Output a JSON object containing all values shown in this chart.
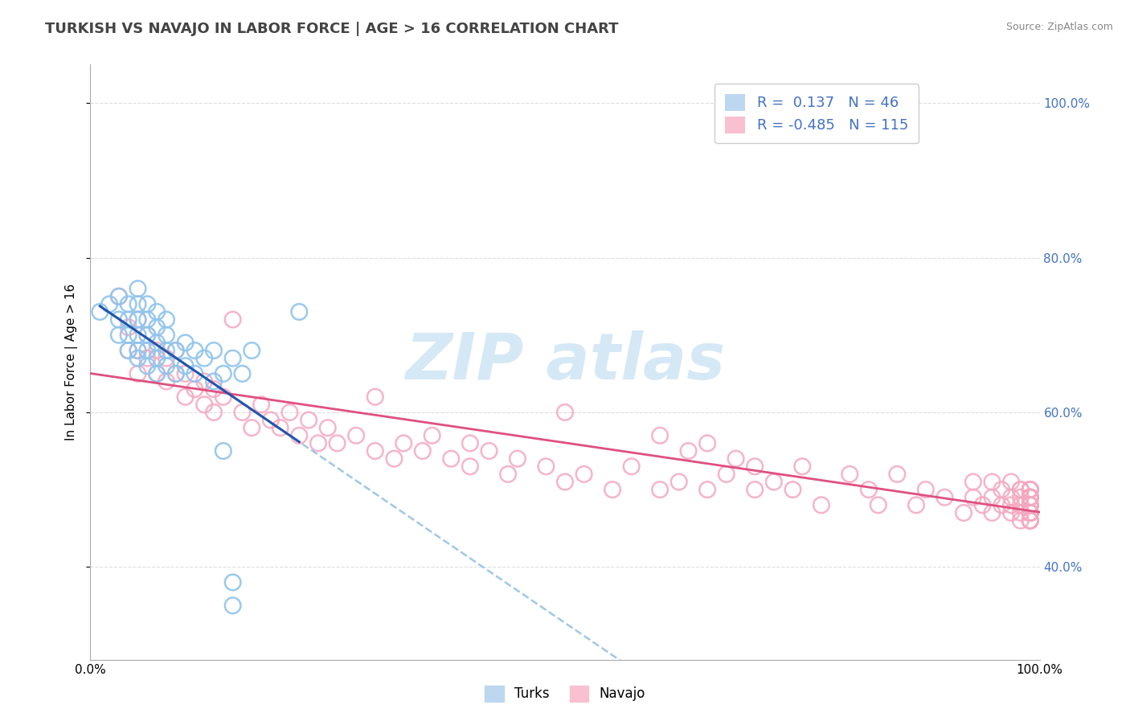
{
  "title": "TURKISH VS NAVAJO IN LABOR FORCE | AGE > 16 CORRELATION CHART",
  "source": "Source: ZipAtlas.com",
  "ylabel": "In Labor Force | Age > 16",
  "x_min": 0.0,
  "x_max": 1.0,
  "y_min": 0.28,
  "y_max": 1.05,
  "x_ticks": [
    0.0,
    1.0
  ],
  "x_tick_labels": [
    "0.0%",
    "100.0%"
  ],
  "y_ticks_right": [
    0.4,
    0.6,
    0.8,
    1.0
  ],
  "y_tick_labels_right": [
    "40.0%",
    "60.0%",
    "80.0%",
    "100.0%"
  ],
  "turks_R": 0.137,
  "turks_N": 46,
  "navajo_R": -0.485,
  "navajo_N": 115,
  "turks_dot_color": "#90C4EC",
  "navajo_dot_color": "#F4A8C0",
  "turks_line_color_solid": "#2255AA",
  "turks_line_color_dashed": "#9FC8E8",
  "navajo_line_color": "#E05080",
  "background_color": "#FFFFFF",
  "grid_color": "#DDDDDD",
  "legend_box_color": "#4472C4",
  "title_color": "#555555",
  "watermark_color": "#D5E8F5",
  "turks_x": [
    0.01,
    0.02,
    0.03,
    0.03,
    0.03,
    0.04,
    0.04,
    0.04,
    0.04,
    0.05,
    0.05,
    0.05,
    0.05,
    0.05,
    0.05,
    0.06,
    0.06,
    0.06,
    0.06,
    0.06,
    0.07,
    0.07,
    0.07,
    0.07,
    0.07,
    0.08,
    0.08,
    0.08,
    0.08,
    0.09,
    0.09,
    0.1,
    0.1,
    0.11,
    0.11,
    0.12,
    0.13,
    0.13,
    0.14,
    0.14,
    0.15,
    0.15,
    0.15,
    0.16,
    0.17,
    0.22
  ],
  "turks_y": [
    0.73,
    0.74,
    0.7,
    0.72,
    0.75,
    0.68,
    0.7,
    0.72,
    0.74,
    0.67,
    0.68,
    0.7,
    0.72,
    0.74,
    0.76,
    0.66,
    0.68,
    0.7,
    0.72,
    0.74,
    0.65,
    0.67,
    0.69,
    0.71,
    0.73,
    0.66,
    0.68,
    0.7,
    0.72,
    0.65,
    0.68,
    0.66,
    0.69,
    0.65,
    0.68,
    0.67,
    0.64,
    0.68,
    0.55,
    0.65,
    0.38,
    0.35,
    0.67,
    0.65,
    0.68,
    0.73
  ],
  "navajo_x": [
    0.03,
    0.04,
    0.04,
    0.05,
    0.05,
    0.05,
    0.06,
    0.06,
    0.07,
    0.07,
    0.08,
    0.08,
    0.09,
    0.09,
    0.1,
    0.1,
    0.11,
    0.12,
    0.12,
    0.13,
    0.13,
    0.14,
    0.15,
    0.16,
    0.17,
    0.18,
    0.19,
    0.2,
    0.21,
    0.22,
    0.23,
    0.24,
    0.25,
    0.26,
    0.28,
    0.3,
    0.3,
    0.32,
    0.33,
    0.35,
    0.36,
    0.38,
    0.4,
    0.4,
    0.42,
    0.44,
    0.45,
    0.48,
    0.5,
    0.5,
    0.52,
    0.55,
    0.57,
    0.6,
    0.6,
    0.62,
    0.63,
    0.65,
    0.65,
    0.67,
    0.68,
    0.7,
    0.7,
    0.72,
    0.74,
    0.75,
    0.77,
    0.8,
    0.82,
    0.83,
    0.85,
    0.87,
    0.88,
    0.9,
    0.92,
    0.93,
    0.93,
    0.94,
    0.95,
    0.95,
    0.95,
    0.96,
    0.96,
    0.97,
    0.97,
    0.97,
    0.97,
    0.98,
    0.98,
    0.98,
    0.98,
    0.98,
    0.98,
    0.99,
    0.99,
    0.99,
    0.99,
    0.99,
    0.99,
    0.99,
    0.99,
    0.99,
    0.99,
    0.99,
    0.99,
    0.99,
    0.99,
    0.99,
    0.99,
    0.99,
    0.99,
    0.99,
    0.99,
    0.99,
    0.99
  ],
  "navajo_y": [
    0.75,
    0.71,
    0.68,
    0.72,
    0.68,
    0.65,
    0.7,
    0.67,
    0.68,
    0.65,
    0.67,
    0.64,
    0.68,
    0.65,
    0.65,
    0.62,
    0.63,
    0.64,
    0.61,
    0.63,
    0.6,
    0.62,
    0.72,
    0.6,
    0.58,
    0.61,
    0.59,
    0.58,
    0.6,
    0.57,
    0.59,
    0.56,
    0.58,
    0.56,
    0.57,
    0.55,
    0.62,
    0.54,
    0.56,
    0.55,
    0.57,
    0.54,
    0.56,
    0.53,
    0.55,
    0.52,
    0.54,
    0.53,
    0.51,
    0.6,
    0.52,
    0.5,
    0.53,
    0.5,
    0.57,
    0.51,
    0.55,
    0.5,
    0.56,
    0.52,
    0.54,
    0.5,
    0.53,
    0.51,
    0.5,
    0.53,
    0.48,
    0.52,
    0.5,
    0.48,
    0.52,
    0.48,
    0.5,
    0.49,
    0.47,
    0.49,
    0.51,
    0.48,
    0.49,
    0.51,
    0.47,
    0.5,
    0.48,
    0.49,
    0.47,
    0.51,
    0.48,
    0.5,
    0.47,
    0.49,
    0.48,
    0.5,
    0.46,
    0.49,
    0.47,
    0.5,
    0.48,
    0.46,
    0.49,
    0.47,
    0.5,
    0.48,
    0.46,
    0.49,
    0.47,
    0.5,
    0.48,
    0.46,
    0.49,
    0.47,
    0.5,
    0.48,
    0.46,
    0.49,
    0.47
  ]
}
